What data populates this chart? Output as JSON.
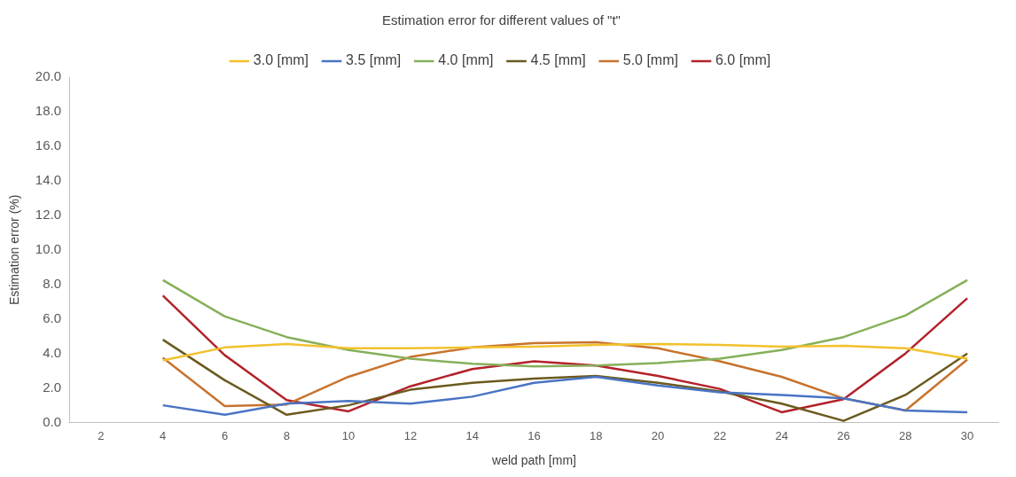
{
  "chart_data": {
    "type": "line",
    "title": "Estimation error for different values of \"t\"",
    "xlabel": "weld path [mm]",
    "ylabel": "Estimation error (%)",
    "x": [
      4,
      6,
      8,
      10,
      12,
      14,
      16,
      18,
      20,
      22,
      24,
      26,
      28,
      30
    ],
    "series": [
      {
        "name": "3.0 [mm]",
        "color": "#f2c12e",
        "values": [
          3.6,
          4.35,
          4.55,
          4.3,
          4.3,
          4.35,
          4.4,
          4.5,
          4.55,
          4.5,
          4.4,
          4.45,
          4.3,
          3.7
        ]
      },
      {
        "name": "3.5 [mm]",
        "color": "#4a74c4",
        "values": [
          1.0,
          0.45,
          1.1,
          1.25,
          1.1,
          1.5,
          2.3,
          2.65,
          2.15,
          1.75,
          1.6,
          1.4,
          0.7,
          0.6
        ]
      },
      {
        "name": "4.0 [mm]",
        "color": "#86b05a",
        "values": [
          8.25,
          6.15,
          4.95,
          4.2,
          3.7,
          3.4,
          3.25,
          3.3,
          3.45,
          3.7,
          4.2,
          4.95,
          6.2,
          8.25
        ]
      },
      {
        "name": "4.5 [mm]",
        "color": "#6b5a1e",
        "values": [
          4.8,
          2.45,
          0.45,
          1.0,
          1.9,
          2.3,
          2.55,
          2.7,
          2.3,
          1.8,
          1.1,
          0.1,
          1.6,
          4.0
        ]
      },
      {
        "name": "5.0 [mm]",
        "color": "#c8732e",
        "values": [
          3.75,
          0.95,
          1.05,
          2.65,
          3.8,
          4.35,
          4.6,
          4.65,
          4.3,
          3.55,
          2.65,
          1.4,
          0.7,
          3.65
        ]
      },
      {
        "name": "6.0 [mm]",
        "color": "#b3222a",
        "values": [
          7.35,
          3.9,
          1.3,
          0.65,
          2.1,
          3.1,
          3.55,
          3.3,
          2.7,
          1.95,
          0.6,
          1.35,
          4.0,
          7.2
        ]
      }
    ],
    "xlim": [
      1,
      31
    ],
    "xticks": [
      2,
      4,
      6,
      8,
      10,
      12,
      14,
      16,
      18,
      20,
      22,
      24,
      26,
      28,
      30
    ],
    "ylim": [
      0,
      20
    ],
    "yticks": [
      {
        "value": 0,
        "label": "0.0"
      },
      {
        "value": 2,
        "label": "2.0"
      },
      {
        "value": 4,
        "label": "4.0"
      },
      {
        "value": 6,
        "label": "6.0"
      },
      {
        "value": 8,
        "label": "8.0"
      },
      {
        "value": 10,
        "label": "10.0"
      },
      {
        "value": 12,
        "label": "12.0"
      },
      {
        "value": 14,
        "label": "14.0"
      },
      {
        "value": 16,
        "label": "16.0"
      },
      {
        "value": 18,
        "label": "18.0"
      },
      {
        "value": 20,
        "label": "20.0"
      }
    ],
    "grid": false,
    "legend": "top",
    "marker": "none",
    "line_style": "solid"
  }
}
